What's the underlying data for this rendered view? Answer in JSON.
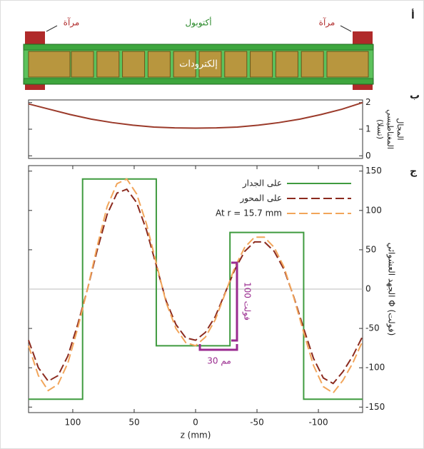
{
  "panel_labels": [
    "أ",
    "ب",
    "ج"
  ],
  "diagram": {
    "mirror_left": "مرآة",
    "octupole": "أكتوبول",
    "mirror_right": "مرآة",
    "electrodes": "إلكترودات"
  },
  "chart_data": [
    {
      "type": "line",
      "ylabel_lines": [
        "المجال",
        "المغناطيسي",
        "(تسلا)"
      ],
      "xlim": [
        136,
        -136
      ],
      "ylim": [
        -0.1,
        2.1
      ],
      "yticks": [
        0,
        1,
        2
      ],
      "color": "#9b3a2a",
      "x": [
        136,
        119,
        102,
        85,
        68,
        51,
        34,
        17,
        0,
        -17,
        -34,
        -51,
        -68,
        -85,
        -102,
        -119,
        -136
      ],
      "values": [
        1.95,
        1.75,
        1.55,
        1.38,
        1.25,
        1.15,
        1.08,
        1.05,
        1.04,
        1.05,
        1.08,
        1.15,
        1.25,
        1.38,
        1.55,
        1.75,
        2.0
      ]
    },
    {
      "type": "line",
      "xlabel": "z (mm)",
      "ylabel": "الجهد العشوائي Φ (فولت)",
      "xlim": [
        136,
        -136
      ],
      "ylim": [
        -157,
        157
      ],
      "xticks": [
        100,
        50,
        0,
        -50,
        -100
      ],
      "yticks": [
        150,
        100,
        50,
        0,
        -50,
        -100,
        -150
      ],
      "zero_line": true,
      "annotations": [
        "100 فولت",
        "30 مم"
      ],
      "series": [
        {
          "name": "على الجدار",
          "color": "#3f9b3f",
          "style": "solid",
          "x": [
            136,
            92,
            92,
            32,
            32,
            -28,
            -28,
            -88,
            -88,
            -136
          ],
          "values": [
            -140,
            -140,
            140,
            140,
            -72,
            -72,
            72,
            72,
            -140,
            -140
          ]
        },
        {
          "name": "على المحور",
          "color": "#8b2a1e",
          "style": "dashed",
          "x": [
            136,
            128,
            120,
            112,
            104,
            96,
            88,
            80,
            72,
            64,
            56,
            48,
            40,
            32,
            24,
            16,
            8,
            0,
            -8,
            -16,
            -24,
            -32,
            -40,
            -48,
            -56,
            -64,
            -72,
            -80,
            -88,
            -96,
            -104,
            -112,
            -120,
            -128,
            -136
          ],
          "values": [
            -65,
            -100,
            -117,
            -110,
            -85,
            -45,
            0,
            50,
            95,
            122,
            127,
            110,
            75,
            30,
            -15,
            -45,
            -62,
            -65,
            -55,
            -35,
            -5,
            25,
            48,
            60,
            60,
            48,
            25,
            -10,
            -50,
            -88,
            -113,
            -120,
            -105,
            -85,
            -60
          ]
        },
        {
          "name": "At r = 15.7 mm",
          "color": "#f2a55a",
          "style": "dashed",
          "x": [
            136,
            128,
            120,
            112,
            104,
            96,
            88,
            80,
            72,
            64,
            56,
            48,
            40,
            32,
            24,
            16,
            8,
            0,
            -8,
            -16,
            -24,
            -32,
            -40,
            -48,
            -56,
            -64,
            -72,
            -80,
            -88,
            -96,
            -104,
            -112,
            -120,
            -128,
            -136
          ],
          "values": [
            -72,
            -110,
            -129,
            -121,
            -94,
            -50,
            0,
            55,
            105,
            134,
            140,
            121,
            83,
            33,
            -17,
            -50,
            -68,
            -72,
            -61,
            -39,
            -6,
            28,
            53,
            66,
            66,
            53,
            28,
            -11,
            -55,
            -97,
            -124,
            -132,
            -116,
            -94,
            -66
          ]
        }
      ]
    }
  ]
}
